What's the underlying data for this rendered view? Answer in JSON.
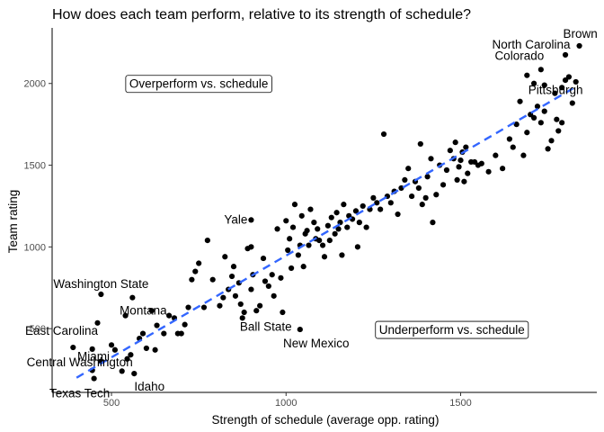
{
  "chart_data": {
    "type": "scatter",
    "title": "How does each team perform, relative to its strength of schedule?",
    "xlabel": "Strength of schedule (average opp. rating)",
    "ylabel": "Team rating",
    "xlim": [
      330,
      1890
    ],
    "ylim": [
      110,
      2340
    ],
    "x_ticks": [
      500,
      1000,
      1500
    ],
    "y_ticks": [
      500,
      1000,
      1500,
      2000
    ],
    "grid": false,
    "trend_line": {
      "style": "dashed",
      "color": "#3366ff",
      "start": {
        "x": 400,
        "y": 200
      },
      "end": {
        "x": 1830,
        "y": 1980
      }
    },
    "annotations": [
      {
        "text": "Overperform vs. schedule",
        "x": 750,
        "y": 2000
      },
      {
        "text": "Underperform vs. schedule",
        "x": 1475,
        "y": 495
      }
    ],
    "labeled_points": [
      {
        "name": "Brown",
        "x": 1840,
        "y": 2230
      },
      {
        "name": "North Carolina",
        "x": 1800,
        "y": 2175
      },
      {
        "name": "Colorado",
        "x": 1730,
        "y": 2085
      },
      {
        "name": "Pittsburgh",
        "x": 1790,
        "y": 1975
      },
      {
        "name": "Yale",
        "x": 900,
        "y": 1165
      },
      {
        "name": "Washington State",
        "x": 470,
        "y": 710
      },
      {
        "name": "Montana",
        "x": 560,
        "y": 690
      },
      {
        "name": "Ball State",
        "x": 875,
        "y": 565
      },
      {
        "name": "New Mexico",
        "x": 1040,
        "y": 495
      },
      {
        "name": "East Carolina",
        "x": 460,
        "y": 535
      },
      {
        "name": "Miami",
        "x": 500,
        "y": 400
      },
      {
        "name": "Central Washington",
        "x": 445,
        "y": 375
      },
      {
        "name": "Texas Tech",
        "x": 450,
        "y": 195
      },
      {
        "name": "Idaho",
        "x": 565,
        "y": 225
      }
    ],
    "points": [
      {
        "x": 390,
        "y": 385
      },
      {
        "x": 445,
        "y": 245
      },
      {
        "x": 470,
        "y": 300
      },
      {
        "x": 510,
        "y": 370
      },
      {
        "x": 530,
        "y": 240
      },
      {
        "x": 545,
        "y": 315
      },
      {
        "x": 540,
        "y": 580
      },
      {
        "x": 555,
        "y": 340
      },
      {
        "x": 580,
        "y": 440
      },
      {
        "x": 590,
        "y": 470
      },
      {
        "x": 600,
        "y": 380
      },
      {
        "x": 615,
        "y": 610
      },
      {
        "x": 625,
        "y": 370
      },
      {
        "x": 630,
        "y": 520
      },
      {
        "x": 650,
        "y": 470
      },
      {
        "x": 665,
        "y": 580
      },
      {
        "x": 680,
        "y": 565
      },
      {
        "x": 690,
        "y": 470
      },
      {
        "x": 700,
        "y": 470
      },
      {
        "x": 710,
        "y": 525
      },
      {
        "x": 720,
        "y": 630
      },
      {
        "x": 730,
        "y": 800
      },
      {
        "x": 740,
        "y": 850
      },
      {
        "x": 750,
        "y": 900
      },
      {
        "x": 765,
        "y": 630
      },
      {
        "x": 775,
        "y": 1040
      },
      {
        "x": 790,
        "y": 800
      },
      {
        "x": 810,
        "y": 640
      },
      {
        "x": 820,
        "y": 690
      },
      {
        "x": 825,
        "y": 940
      },
      {
        "x": 835,
        "y": 740
      },
      {
        "x": 845,
        "y": 820
      },
      {
        "x": 850,
        "y": 880
      },
      {
        "x": 855,
        "y": 700
      },
      {
        "x": 865,
        "y": 780
      },
      {
        "x": 870,
        "y": 650
      },
      {
        "x": 880,
        "y": 600
      },
      {
        "x": 890,
        "y": 990
      },
      {
        "x": 900,
        "y": 1000
      },
      {
        "x": 900,
        "y": 740
      },
      {
        "x": 905,
        "y": 830
      },
      {
        "x": 915,
        "y": 610
      },
      {
        "x": 925,
        "y": 640
      },
      {
        "x": 935,
        "y": 930
      },
      {
        "x": 940,
        "y": 790
      },
      {
        "x": 950,
        "y": 760
      },
      {
        "x": 960,
        "y": 830
      },
      {
        "x": 965,
        "y": 700
      },
      {
        "x": 975,
        "y": 1110
      },
      {
        "x": 985,
        "y": 810
      },
      {
        "x": 990,
        "y": 600
      },
      {
        "x": 1000,
        "y": 1160
      },
      {
        "x": 1005,
        "y": 980
      },
      {
        "x": 1010,
        "y": 1050
      },
      {
        "x": 1015,
        "y": 870
      },
      {
        "x": 1020,
        "y": 1120
      },
      {
        "x": 1025,
        "y": 1260
      },
      {
        "x": 1035,
        "y": 950
      },
      {
        "x": 1040,
        "y": 1010
      },
      {
        "x": 1045,
        "y": 1190
      },
      {
        "x": 1050,
        "y": 880
      },
      {
        "x": 1055,
        "y": 1080
      },
      {
        "x": 1060,
        "y": 1100
      },
      {
        "x": 1065,
        "y": 1010
      },
      {
        "x": 1070,
        "y": 1230
      },
      {
        "x": 1080,
        "y": 1150
      },
      {
        "x": 1085,
        "y": 1050
      },
      {
        "x": 1090,
        "y": 1110
      },
      {
        "x": 1095,
        "y": 1040
      },
      {
        "x": 1105,
        "y": 1010
      },
      {
        "x": 1110,
        "y": 940
      },
      {
        "x": 1120,
        "y": 1130
      },
      {
        "x": 1125,
        "y": 1040
      },
      {
        "x": 1130,
        "y": 1180
      },
      {
        "x": 1140,
        "y": 1080
      },
      {
        "x": 1145,
        "y": 1210
      },
      {
        "x": 1150,
        "y": 1110
      },
      {
        "x": 1155,
        "y": 1150
      },
      {
        "x": 1160,
        "y": 950
      },
      {
        "x": 1165,
        "y": 1260
      },
      {
        "x": 1175,
        "y": 1120
      },
      {
        "x": 1180,
        "y": 1190
      },
      {
        "x": 1190,
        "y": 1170
      },
      {
        "x": 1200,
        "y": 1220
      },
      {
        "x": 1205,
        "y": 1000
      },
      {
        "x": 1210,
        "y": 1150
      },
      {
        "x": 1220,
        "y": 1250
      },
      {
        "x": 1230,
        "y": 1120
      },
      {
        "x": 1240,
        "y": 1230
      },
      {
        "x": 1250,
        "y": 1300
      },
      {
        "x": 1260,
        "y": 1270
      },
      {
        "x": 1270,
        "y": 1230
      },
      {
        "x": 1280,
        "y": 1690
      },
      {
        "x": 1290,
        "y": 1310
      },
      {
        "x": 1300,
        "y": 1270
      },
      {
        "x": 1310,
        "y": 1340
      },
      {
        "x": 1320,
        "y": 1200
      },
      {
        "x": 1330,
        "y": 1360
      },
      {
        "x": 1340,
        "y": 1410
      },
      {
        "x": 1350,
        "y": 1480
      },
      {
        "x": 1360,
        "y": 1310
      },
      {
        "x": 1370,
        "y": 1400
      },
      {
        "x": 1380,
        "y": 1360
      },
      {
        "x": 1385,
        "y": 1630
      },
      {
        "x": 1390,
        "y": 1260
      },
      {
        "x": 1400,
        "y": 1300
      },
      {
        "x": 1405,
        "y": 1430
      },
      {
        "x": 1415,
        "y": 1540
      },
      {
        "x": 1420,
        "y": 1150
      },
      {
        "x": 1430,
        "y": 1320
      },
      {
        "x": 1440,
        "y": 1500
      },
      {
        "x": 1450,
        "y": 1380
      },
      {
        "x": 1460,
        "y": 1470
      },
      {
        "x": 1470,
        "y": 1590
      },
      {
        "x": 1480,
        "y": 1540
      },
      {
        "x": 1485,
        "y": 1640
      },
      {
        "x": 1490,
        "y": 1410
      },
      {
        "x": 1495,
        "y": 1490
      },
      {
        "x": 1500,
        "y": 1530
      },
      {
        "x": 1505,
        "y": 1580
      },
      {
        "x": 1510,
        "y": 1400
      },
      {
        "x": 1515,
        "y": 1610
      },
      {
        "x": 1520,
        "y": 1450
      },
      {
        "x": 1530,
        "y": 1520
      },
      {
        "x": 1540,
        "y": 1520
      },
      {
        "x": 1550,
        "y": 1500
      },
      {
        "x": 1560,
        "y": 1510
      },
      {
        "x": 1580,
        "y": 1460
      },
      {
        "x": 1600,
        "y": 1560
      },
      {
        "x": 1620,
        "y": 1480
      },
      {
        "x": 1640,
        "y": 1660
      },
      {
        "x": 1650,
        "y": 1610
      },
      {
        "x": 1660,
        "y": 1750
      },
      {
        "x": 1670,
        "y": 1890
      },
      {
        "x": 1680,
        "y": 1560
      },
      {
        "x": 1690,
        "y": 1700
      },
      {
        "x": 1700,
        "y": 1810
      },
      {
        "x": 1710,
        "y": 1790
      },
      {
        "x": 1720,
        "y": 1860
      },
      {
        "x": 1730,
        "y": 1760
      },
      {
        "x": 1740,
        "y": 1830
      },
      {
        "x": 1750,
        "y": 1600
      },
      {
        "x": 1760,
        "y": 1650
      },
      {
        "x": 1770,
        "y": 1940
      },
      {
        "x": 1775,
        "y": 1780
      },
      {
        "x": 1780,
        "y": 1710
      },
      {
        "x": 1790,
        "y": 1760
      },
      {
        "x": 1800,
        "y": 2020
      },
      {
        "x": 1810,
        "y": 2040
      },
      {
        "x": 1820,
        "y": 1880
      },
      {
        "x": 1830,
        "y": 2010
      },
      {
        "x": 1740,
        "y": 1990
      },
      {
        "x": 1710,
        "y": 2000
      },
      {
        "x": 1690,
        "y": 2050
      }
    ]
  }
}
